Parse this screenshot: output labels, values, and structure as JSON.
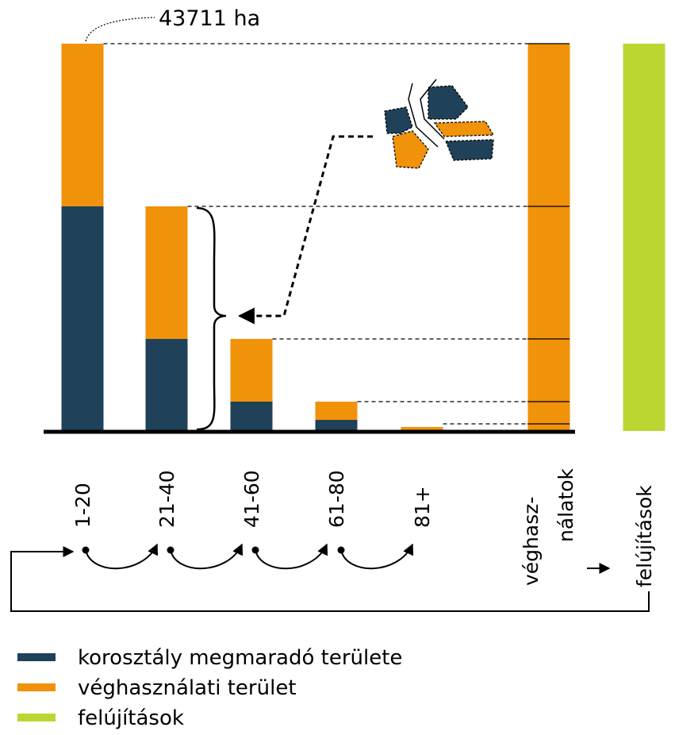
{
  "chart_data": {
    "type": "bar",
    "annotation": "43711 ha",
    "categories": [
      "1-20",
      "21-40",
      "41-60",
      "61-80",
      "81+",
      [
        "véghasz-",
        "nálatok"
      ],
      "felújítások"
    ],
    "series": [
      {
        "name": "korosztály megmaradó területe",
        "color": "#1f4159",
        "values": [
          25350,
          10390,
          3314,
          1254,
          0,
          null,
          null
        ]
      },
      {
        "name": "véghasználati terület",
        "color": "#f0920a",
        "values": [
          18361,
          14960,
          7076,
          2060,
          450,
          43711,
          null
        ]
      },
      {
        "name": "felújítások",
        "color": "#bcd631",
        "values": [
          null,
          null,
          null,
          null,
          null,
          null,
          43711
        ]
      }
    ],
    "ylim": [
      0,
      43711
    ]
  }
}
